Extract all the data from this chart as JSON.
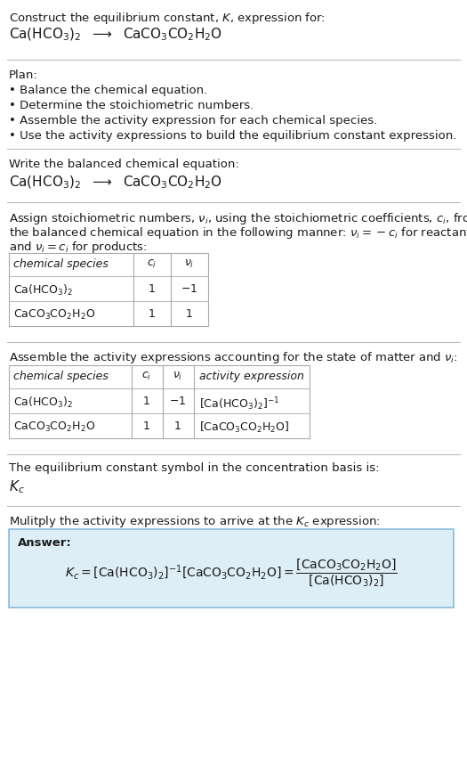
{
  "bg_color": "#ffffff",
  "text_color": "#1a1a1a",
  "table_border": "#aaaaaa",
  "answer_bg": "#ddeef6",
  "answer_border": "#88bbdd",
  "title_line1": "Construct the equilibrium constant, $K$, expression for:",
  "title_line2": "$\\mathrm{Ca(HCO_3)_2}$  $\\longrightarrow$  $\\mathrm{CaCO_3CO_2H_2O}$",
  "plan_header": "Plan:",
  "plan_bullets": [
    "• Balance the chemical equation.",
    "• Determine the stoichiometric numbers.",
    "• Assemble the activity expression for each chemical species.",
    "• Use the activity expressions to build the equilibrium constant expression."
  ],
  "section2_header": "Write the balanced chemical equation:",
  "section2_eq": "$\\mathrm{Ca(HCO_3)_2}$  $\\longrightarrow$  $\\mathrm{CaCO_3CO_2H_2O}$",
  "section3_header1": "Assign stoichiometric numbers, $\\nu_i$, using the stoichiometric coefficients, $c_i$, from",
  "section3_header2": "the balanced chemical equation in the following manner: $\\nu_i = -c_i$ for reactants",
  "section3_header3": "and $\\nu_i = c_i$ for products:",
  "table1_headers": [
    "chemical species",
    "$c_i$",
    "$\\nu_i$"
  ],
  "table1_rows": [
    [
      "$\\mathrm{Ca(HCO_3)_2}$",
      "1",
      "$-1$"
    ],
    [
      "$\\mathrm{CaCO_3CO_2H_2O}$",
      "1",
      "1"
    ]
  ],
  "section4_header": "Assemble the activity expressions accounting for the state of matter and $\\nu_i$:",
  "table2_headers": [
    "chemical species",
    "$c_i$",
    "$\\nu_i$",
    "activity expression"
  ],
  "table2_rows": [
    [
      "$\\mathrm{Ca(HCO_3)_2}$",
      "1",
      "$-1$",
      "$[\\mathrm{Ca(HCO_3)_2}]^{-1}$"
    ],
    [
      "$\\mathrm{CaCO_3CO_2H_2O}$",
      "1",
      "1",
      "$[\\mathrm{CaCO_3CO_2H_2O}]$"
    ]
  ],
  "section5_header": "The equilibrium constant symbol in the concentration basis is:",
  "section5_symbol": "$K_c$",
  "section6_header": "Mulitply the activity expressions to arrive at the $K_c$ expression:",
  "answer_label": "Answer:",
  "answer_line1": "$K_c = [\\mathrm{Ca(HCO_3)_2}]^{-1} [\\mathrm{CaCO_3CO_2H_2O}] = \\dfrac{[\\mathrm{CaCO_3CO_2H_2O}]}{[\\mathrm{Ca(HCO_3)_2}]}$"
}
